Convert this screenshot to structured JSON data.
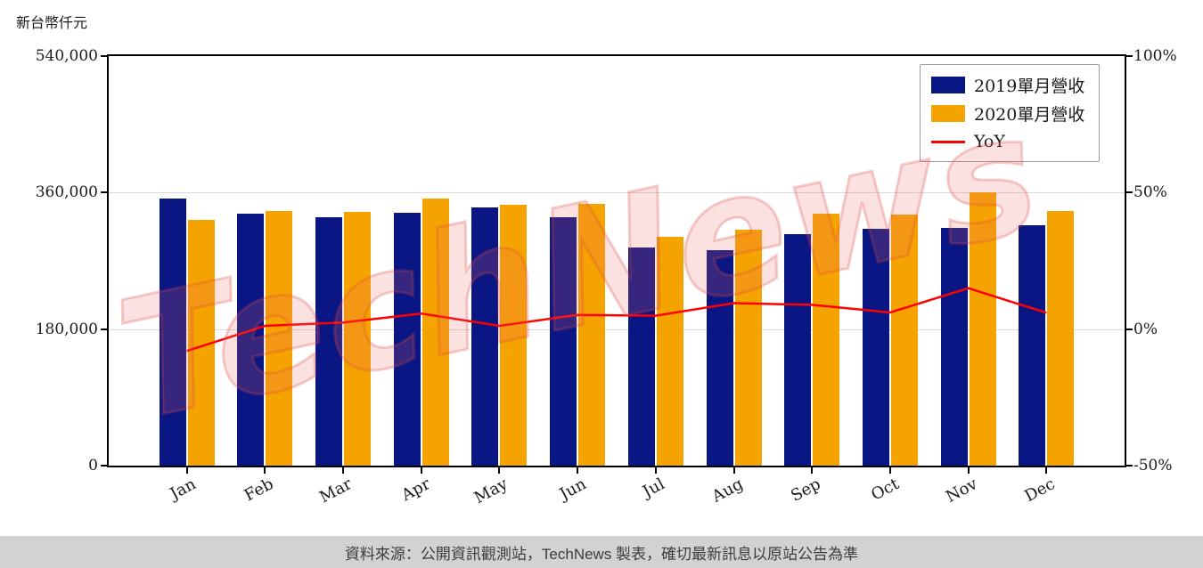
{
  "axis_title": "新台幣仟元",
  "watermark": "TechNews",
  "footer": {
    "text": "資料來源：公開資訊觀測站，TechNews 製表，確切最新訊息以原站公告為準"
  },
  "chart_data": {
    "type": "bar",
    "title": "",
    "categories": [
      "Jan",
      "Feb",
      "Mar",
      "Apr",
      "May",
      "Jun",
      "Jul",
      "Aug",
      "Sep",
      "Oct",
      "Nov",
      "Dec"
    ],
    "series": [
      {
        "name": "2019單月營收",
        "color": "#0b1685",
        "axis": "left",
        "values": [
          352000,
          332000,
          327000,
          333000,
          340000,
          328000,
          288000,
          284000,
          305000,
          312000,
          313000,
          317000
        ]
      },
      {
        "name": "2020單月營收",
        "color": "#f5a300",
        "axis": "left",
        "values": [
          324000,
          336000,
          335000,
          352000,
          344000,
          345000,
          302000,
          311000,
          332000,
          331000,
          360000,
          336000
        ]
      }
    ],
    "line_series": {
      "name": "YoY",
      "type": "line",
      "color": "#ff0000",
      "axis": "right",
      "values": [
        -8.0,
        1.2,
        2.4,
        5.7,
        1.2,
        5.2,
        4.9,
        9.5,
        8.9,
        6.1,
        15.0,
        6.0
      ]
    },
    "left_axis": {
      "title": "新台幣仟元",
      "min": 0,
      "max": 540000,
      "tick_values": [
        0,
        180000,
        360000,
        540000
      ],
      "tick_labels": [
        "0",
        "180,000",
        "360,000",
        "540,000"
      ]
    },
    "right_axis": {
      "min": -50,
      "max": 100,
      "tick_values": [
        -50,
        0,
        50,
        100
      ],
      "tick_labels": [
        "-50%",
        "0%",
        "50%",
        "100%"
      ]
    },
    "legend_position": "top-right",
    "grid": true,
    "colors": {
      "grid": "#d9d9d9",
      "axis": "#000000",
      "watermark": "#e05c55",
      "footer_bg": "#d2d2d2"
    }
  }
}
